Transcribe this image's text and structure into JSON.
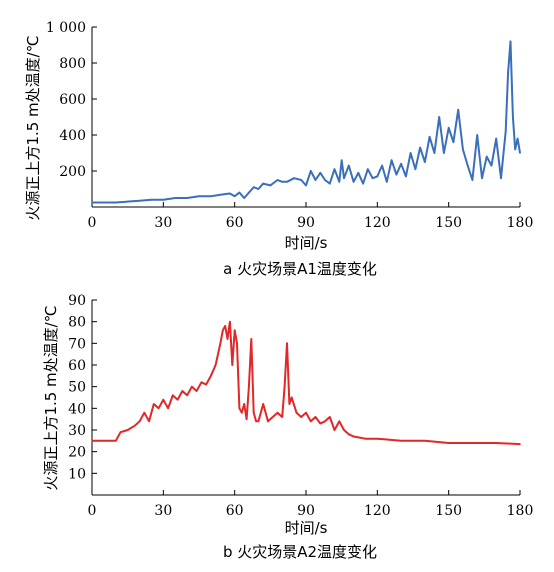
{
  "chart_data": [
    {
      "type": "line",
      "caption": "a 火灾场景A1温度变化",
      "xlabel": "时间/s",
      "ylabel": "火源正上方1.5 m处温度/℃",
      "xlim": [
        0,
        180
      ],
      "ylim": [
        0,
        1000
      ],
      "xticks": [
        "0",
        "30",
        "60",
        "90",
        "120",
        "150",
        "180"
      ],
      "yticks": [
        "200",
        "400",
        "600",
        "800",
        "1 000"
      ],
      "ytick_values": [
        200,
        400,
        600,
        800,
        1000
      ],
      "color": "#3a6fba",
      "x": [
        0,
        10,
        20,
        25,
        30,
        35,
        40,
        45,
        50,
        55,
        58,
        60,
        62,
        64,
        66,
        68,
        70,
        72,
        75,
        78,
        80,
        82,
        85,
        88,
        90,
        92,
        94,
        96,
        98,
        100,
        102,
        104,
        105,
        106,
        108,
        110,
        112,
        114,
        116,
        118,
        120,
        122,
        124,
        126,
        128,
        130,
        132,
        134,
        136,
        138,
        140,
        142,
        144,
        146,
        148,
        150,
        152,
        154,
        156,
        158,
        160,
        162,
        164,
        166,
        168,
        170,
        172,
        174,
        175,
        176,
        177,
        178,
        179,
        180
      ],
      "values": [
        25,
        25,
        35,
        40,
        40,
        50,
        50,
        60,
        60,
        70,
        75,
        60,
        80,
        50,
        80,
        110,
        100,
        130,
        120,
        150,
        140,
        140,
        160,
        150,
        120,
        200,
        150,
        190,
        150,
        130,
        210,
        140,
        260,
        160,
        230,
        140,
        190,
        130,
        210,
        160,
        170,
        230,
        140,
        260,
        180,
        240,
        170,
        300,
        210,
        330,
        250,
        390,
        300,
        500,
        300,
        440,
        360,
        540,
        320,
        230,
        150,
        400,
        160,
        280,
        230,
        380,
        160,
        420,
        750,
        920,
        500,
        320,
        380,
        300
      ]
    },
    {
      "type": "line",
      "caption": "b 火灾场景A2温度变化",
      "xlabel": "时间/s",
      "ylabel": "火源正上方1.5 m处温度/℃",
      "xlim": [
        0,
        180
      ],
      "ylim": [
        0,
        90
      ],
      "xticks": [
        "0",
        "30",
        "60",
        "90",
        "120",
        "150",
        "180"
      ],
      "yticks": [
        "10",
        "20",
        "30",
        "40",
        "50",
        "60",
        "70",
        "80",
        "90"
      ],
      "ytick_values": [
        10,
        20,
        30,
        40,
        50,
        60,
        70,
        80,
        90
      ],
      "color": "#e32626",
      "x": [
        0,
        10,
        12,
        15,
        18,
        20,
        22,
        24,
        26,
        28,
        30,
        32,
        34,
        36,
        38,
        40,
        42,
        44,
        46,
        48,
        50,
        52,
        54,
        55,
        56,
        57,
        58,
        59,
        60,
        61,
        62,
        63,
        64,
        65,
        66,
        67,
        68,
        69,
        70,
        72,
        74,
        76,
        78,
        80,
        81,
        82,
        83,
        84,
        86,
        88,
        90,
        92,
        94,
        96,
        98,
        100,
        102,
        104,
        106,
        108,
        110,
        115,
        120,
        130,
        140,
        150,
        160,
        170,
        180
      ],
      "values": [
        25,
        25,
        29,
        30,
        32,
        34,
        38,
        34,
        42,
        40,
        44,
        40,
        46,
        44,
        48,
        46,
        50,
        48,
        52,
        51,
        55,
        60,
        70,
        76,
        78,
        72,
        80,
        60,
        76,
        70,
        40,
        38,
        42,
        35,
        50,
        72,
        38,
        34,
        34,
        42,
        34,
        36,
        38,
        36,
        50,
        70,
        42,
        45,
        38,
        36,
        38,
        34,
        36,
        33,
        34,
        36,
        30,
        34,
        30,
        28,
        27,
        26,
        26,
        25,
        25,
        24,
        24,
        24,
        23.5
      ]
    }
  ]
}
